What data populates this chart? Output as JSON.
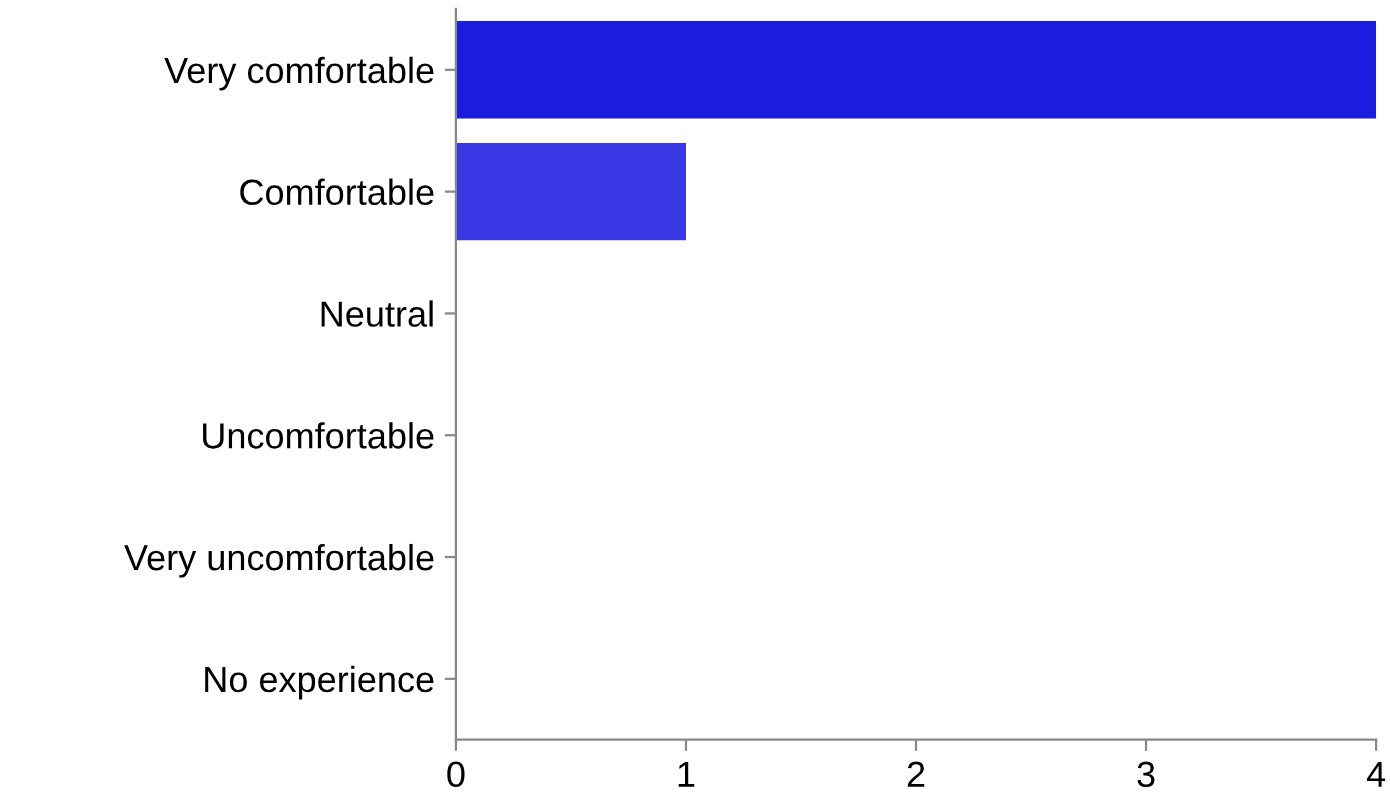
{
  "chart_data": {
    "type": "bar",
    "orientation": "horizontal",
    "categories": [
      "Very comfortable",
      "Comfortable",
      "Neutral",
      "Uncomfortable",
      "Very uncomfortable",
      "No experience"
    ],
    "values": [
      4,
      1,
      0,
      0,
      0,
      0
    ],
    "colors": [
      "#1c1ce0",
      "#3838e4",
      "#3838e4",
      "#3838e4",
      "#3838e4",
      "#3838e4"
    ],
    "xlim": [
      0,
      4
    ],
    "xticks": [
      0,
      1,
      2,
      3,
      4
    ],
    "grid": false,
    "legend": false
  }
}
